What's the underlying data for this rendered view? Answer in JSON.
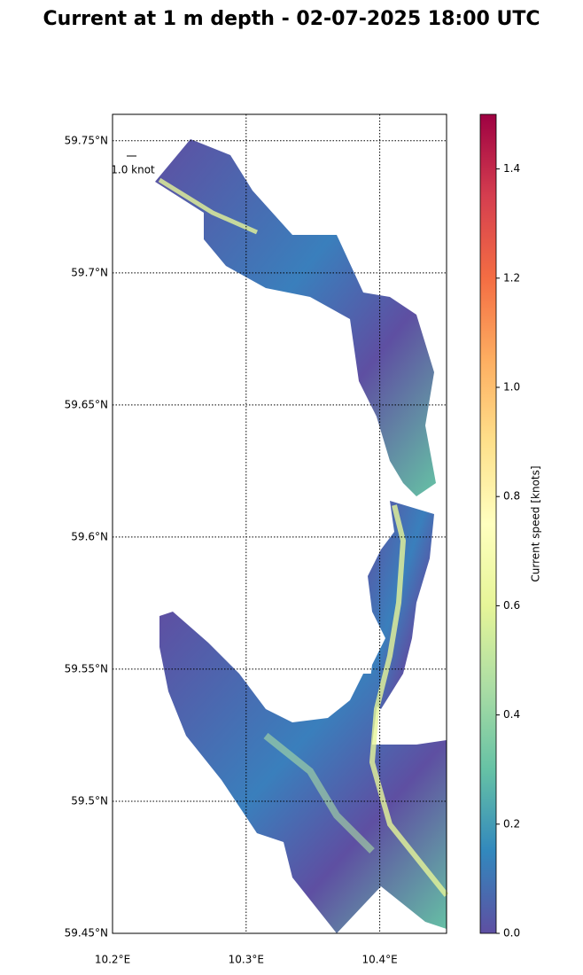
{
  "chart_data": {
    "type": "map",
    "title": "Current at 1 m depth - 02-07-2025 18:00 UTC",
    "xlim": [
      10.2,
      10.45
    ],
    "ylim": [
      59.45,
      59.76
    ],
    "xticks": [
      {
        "value": 10.2,
        "label": "10.2°E"
      },
      {
        "value": 10.3,
        "label": "10.3°E"
      },
      {
        "value": 10.4,
        "label": "10.4°E"
      }
    ],
    "yticks": [
      {
        "value": 59.45,
        "label": "59.45°N"
      },
      {
        "value": 59.5,
        "label": "59.5°N"
      },
      {
        "value": 59.55,
        "label": "59.55°N"
      },
      {
        "value": 59.6,
        "label": "59.6°N"
      },
      {
        "value": 59.65,
        "label": "59.65°N"
      },
      {
        "value": 59.7,
        "label": "59.7°N"
      },
      {
        "value": 59.75,
        "label": "59.75°N"
      }
    ],
    "grid": true,
    "quiver_key": "1.0 knot",
    "colorbar": {
      "label": "Current speed [knots]",
      "clim": [
        0,
        1.5
      ],
      "ticks": [
        {
          "value": 0,
          "label": "0.0"
        },
        0.2,
        0.4,
        0.6,
        0.8,
        {
          "value": 1,
          "label": "1.0"
        },
        1.2,
        1.4
      ],
      "colormap": [
        "#5e4fa2",
        "#3288bd",
        "#66c2a5",
        "#abdda4",
        "#e6f598",
        "#ffffbf",
        "#fee08b",
        "#fdae61",
        "#f46d43",
        "#d53e4f",
        "#9e0142"
      ]
    }
  }
}
